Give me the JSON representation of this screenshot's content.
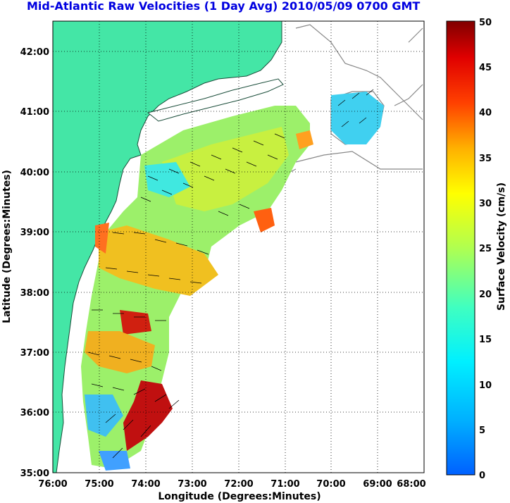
{
  "title": "Mid-Atlantic Raw Velocities (1 Day Avg) 2010/05/09 0700 GMT",
  "map": {
    "xlabel": "Longitude (Degrees:Minutes)",
    "ylabel": "Latitude (Degrees:Minutes)",
    "xticks": [
      "76:00",
      "75:00",
      "74:00",
      "73:00",
      "72:00",
      "71:00",
      "70:00",
      "69:00",
      "68:00"
    ],
    "yticks": [
      "35:00",
      "36:00",
      "37:00",
      "38:00",
      "39:00",
      "40:00",
      "41:00",
      "42:00"
    ],
    "lon_range": [
      -76,
      -68
    ],
    "lat_range": [
      35,
      42.5
    ],
    "land_color": "#44e6a6",
    "grid": "dotted"
  },
  "colorbar": {
    "label": "Surface Velocity (cm/s)",
    "ticks": [
      "0",
      "5",
      "10",
      "15",
      "20",
      "25",
      "30",
      "35",
      "40",
      "45",
      "50"
    ],
    "range": [
      0,
      50
    ],
    "colormap": "jet"
  }
}
